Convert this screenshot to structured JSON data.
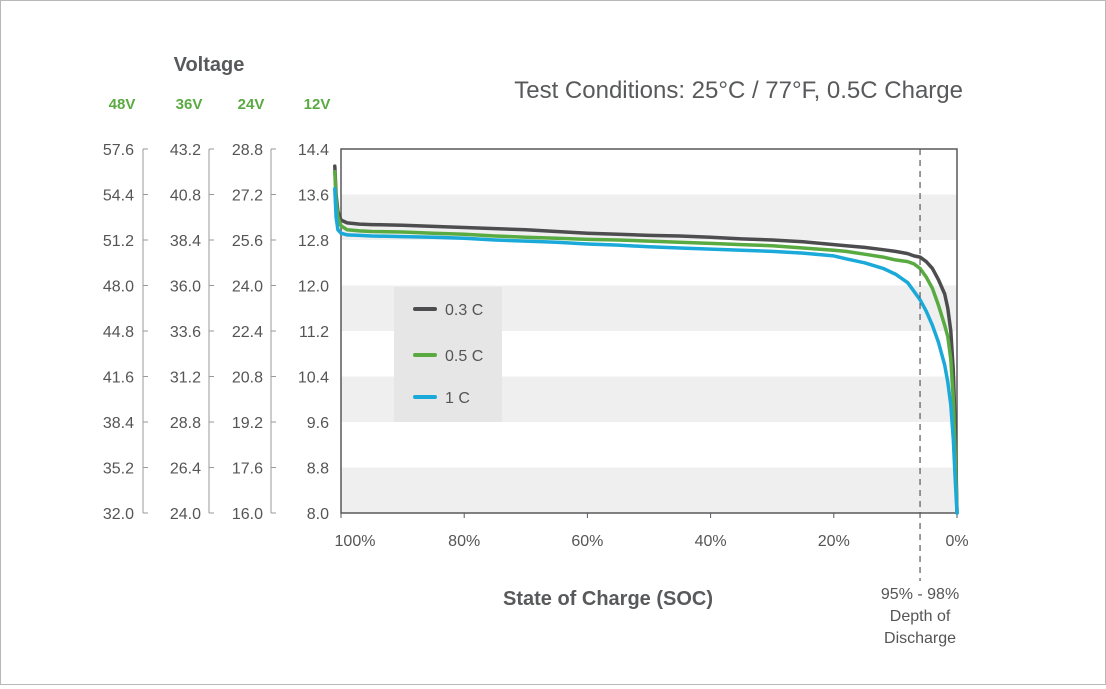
{
  "chart_data": {
    "type": "line",
    "title": "Test Conditions: 25°C / 77°F, 0.5C Charge",
    "ylabel": "Voltage",
    "xlabel": "State of Charge (SOC)",
    "xlim": [
      100,
      0
    ],
    "ylim": [
      8.0,
      14.4
    ],
    "x_ticks": [
      "100%",
      "80%",
      "60%",
      "40%",
      "20%",
      "0%"
    ],
    "x_tick_values": [
      100,
      80,
      60,
      40,
      20,
      0
    ],
    "voltage_scales": [
      {
        "label": "48V",
        "ticks": [
          "57.6",
          "54.4",
          "51.2",
          "48.0",
          "44.8",
          "41.6",
          "38.4",
          "35.2",
          "32.0"
        ]
      },
      {
        "label": "36V",
        "ticks": [
          "43.2",
          "40.8",
          "38.4",
          "36.0",
          "33.6",
          "31.2",
          "28.8",
          "26.4",
          "24.0"
        ]
      },
      {
        "label": "24V",
        "ticks": [
          "28.8",
          "27.2",
          "25.6",
          "24.0",
          "22.4",
          "20.8",
          "19.2",
          "17.6",
          "16.0"
        ]
      },
      {
        "label": "12V",
        "ticks": [
          "14.4",
          "13.6",
          "12.8",
          "12.0",
          "11.2",
          "10.4",
          "9.6",
          "8.8",
          "8.0"
        ]
      }
    ],
    "y_tick_values_12v": [
      14.4,
      13.6,
      12.8,
      12.0,
      11.2,
      10.4,
      9.6,
      8.8,
      8.0
    ],
    "grid_bands": true,
    "legend_placement": "center-left",
    "annotation": {
      "x": 6,
      "lines": [
        "95% - 98%",
        "Depth of",
        "Discharge"
      ]
    },
    "series": [
      {
        "name": "0.3 C",
        "color": "#4d4d4f",
        "x": [
          101,
          100.8,
          100.5,
          100,
          99,
          97,
          95,
          90,
          85,
          80,
          75,
          70,
          65,
          60,
          55,
          50,
          45,
          40,
          35,
          30,
          25,
          20,
          18,
          15,
          12,
          10,
          8,
          7,
          6,
          5,
          4,
          3,
          2,
          1.5,
          1,
          0.6,
          0.3,
          0
        ],
        "y": [
          14.1,
          13.6,
          13.3,
          13.15,
          13.1,
          13.08,
          13.07,
          13.06,
          13.04,
          13.02,
          13.0,
          12.98,
          12.95,
          12.92,
          12.9,
          12.88,
          12.87,
          12.85,
          12.82,
          12.8,
          12.77,
          12.72,
          12.7,
          12.67,
          12.63,
          12.6,
          12.56,
          12.52,
          12.5,
          12.42,
          12.3,
          12.1,
          11.85,
          11.6,
          11.2,
          10.5,
          9.5,
          8.0
        ]
      },
      {
        "name": "0.5 C",
        "color": "#5aaa42",
        "x": [
          101,
          100.8,
          100.5,
          100,
          99,
          97,
          95,
          90,
          85,
          80,
          75,
          70,
          65,
          60,
          55,
          50,
          45,
          40,
          35,
          30,
          25,
          20,
          18,
          15,
          12,
          10,
          8,
          7,
          6,
          5,
          4,
          3,
          2,
          1.5,
          1,
          0.6,
          0.3,
          0
        ],
        "y": [
          14.0,
          13.5,
          13.2,
          13.05,
          12.98,
          12.96,
          12.95,
          12.94,
          12.92,
          12.9,
          12.87,
          12.85,
          12.83,
          12.81,
          12.8,
          12.78,
          12.76,
          12.74,
          12.72,
          12.7,
          12.66,
          12.62,
          12.6,
          12.55,
          12.5,
          12.45,
          12.42,
          12.38,
          12.3,
          12.15,
          11.95,
          11.65,
          11.3,
          11.1,
          10.7,
          10.0,
          9.0,
          8.0
        ]
      },
      {
        "name": "1 C",
        "color": "#1ba9d9",
        "x": [
          101,
          100.8,
          100.5,
          100,
          99,
          97,
          95,
          90,
          85,
          80,
          75,
          70,
          65,
          60,
          55,
          50,
          45,
          40,
          35,
          30,
          25,
          20,
          18,
          15,
          12,
          10,
          8,
          7,
          6,
          5,
          4,
          3,
          2,
          1.5,
          1,
          0.6,
          0.3,
          0
        ],
        "y": [
          13.7,
          13.2,
          12.98,
          12.92,
          12.89,
          12.88,
          12.87,
          12.86,
          12.85,
          12.83,
          12.8,
          12.78,
          12.76,
          12.73,
          12.71,
          12.68,
          12.66,
          12.64,
          12.62,
          12.6,
          12.57,
          12.52,
          12.47,
          12.4,
          12.3,
          12.2,
          12.05,
          11.9,
          11.75,
          11.55,
          11.3,
          11.0,
          10.6,
          10.3,
          9.9,
          9.3,
          8.6,
          8.0
        ]
      }
    ]
  }
}
